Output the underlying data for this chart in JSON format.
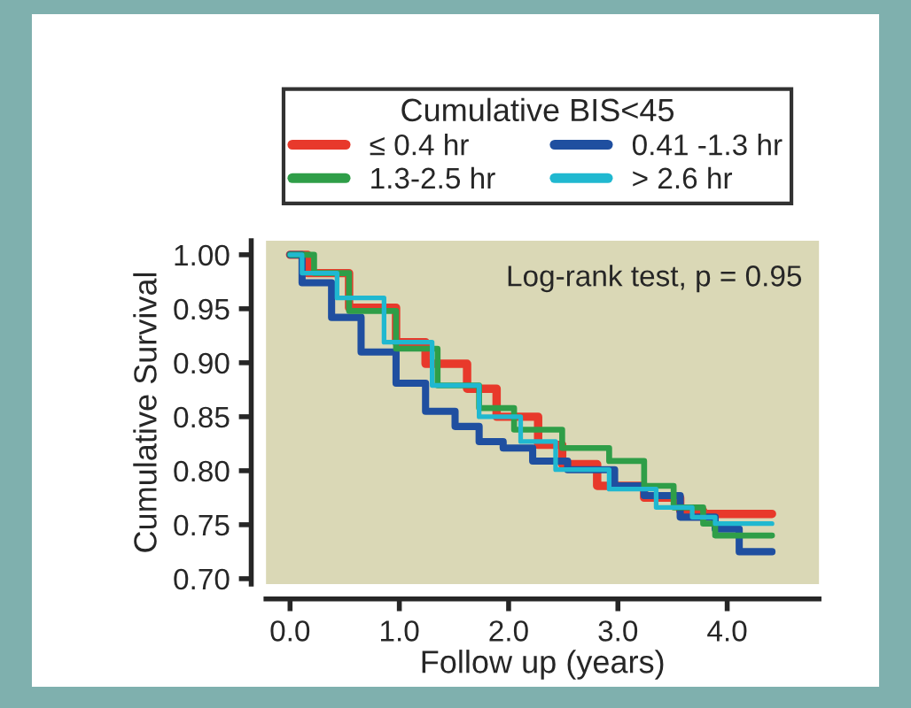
{
  "chart_data": {
    "type": "step",
    "xlabel": "Follow up (years)",
    "ylabel": "Cumulative Survival",
    "legend_title": "Cumulative BIS<45",
    "legend": "top",
    "xlim": [
      -0.22,
      4.84
    ],
    "ylim": [
      0.695,
      1.013
    ],
    "xticks": [
      {
        "value": 0,
        "label": "0.0"
      },
      {
        "value": 1,
        "label": "1.0"
      },
      {
        "value": 2,
        "label": "2.0"
      },
      {
        "value": 3,
        "label": "3.0"
      },
      {
        "value": 4,
        "label": "4.0"
      }
    ],
    "yticks": [
      {
        "value": 0.7,
        "label": "0.70"
      },
      {
        "value": 0.75,
        "label": "0.75"
      },
      {
        "value": 0.8,
        "label": "0.80"
      },
      {
        "value": 0.85,
        "label": "0.85"
      },
      {
        "value": 0.9,
        "label": "0.90"
      },
      {
        "value": 0.95,
        "label": "0.95"
      },
      {
        "value": 1.0,
        "label": "1.00"
      }
    ],
    "grid": false,
    "line_style": "solid",
    "marker": "none",
    "annotations": [
      "Log-rank test, p = 0.95"
    ],
    "series": [
      {
        "name": "≤ 0.4 hr",
        "color": "#e8392b",
        "x": [
          0,
          0.16,
          0.54,
          0.97,
          1.24,
          1.62,
          1.89,
          2.27,
          2.49,
          2.81,
          3.24,
          3.57,
          3.78,
          4.41
        ],
        "values": [
          1.0,
          0.983,
          0.951,
          0.919,
          0.899,
          0.876,
          0.85,
          0.824,
          0.806,
          0.786,
          0.775,
          0.763,
          0.76,
          0.76
        ]
      },
      {
        "name": "0.41 -1.3 hr",
        "color": "#1f4fa0",
        "x": [
          0,
          0.11,
          0.38,
          0.65,
          0.97,
          1.24,
          1.51,
          1.73,
          1.95,
          2.22,
          2.54,
          2.97,
          3.24,
          3.57,
          3.89,
          4.11,
          4.41
        ],
        "values": [
          1.0,
          0.974,
          0.942,
          0.91,
          0.881,
          0.855,
          0.841,
          0.827,
          0.821,
          0.809,
          0.801,
          0.786,
          0.777,
          0.757,
          0.746,
          0.725,
          0.725
        ]
      },
      {
        "name": "1.3-2.5 hr",
        "color": "#2f9e48",
        "x": [
          0,
          0.22,
          0.54,
          0.97,
          1.35,
          1.73,
          2.05,
          2.49,
          2.92,
          3.24,
          3.51,
          3.78,
          3.89,
          4.41
        ],
        "values": [
          1.0,
          0.983,
          0.948,
          0.913,
          0.879,
          0.858,
          0.838,
          0.821,
          0.809,
          0.786,
          0.766,
          0.751,
          0.74,
          0.74
        ]
      },
      {
        "name": "> 2.6 hr",
        "color": "#20b8d0",
        "x": [
          0,
          0.11,
          0.43,
          0.86,
          1.3,
          1.73,
          2.11,
          2.43,
          2.92,
          3.35,
          3.68,
          3.89,
          4.41
        ],
        "values": [
          1.0,
          0.983,
          0.96,
          0.919,
          0.879,
          0.85,
          0.827,
          0.801,
          0.783,
          0.766,
          0.757,
          0.751,
          0.751
        ]
      }
    ]
  }
}
